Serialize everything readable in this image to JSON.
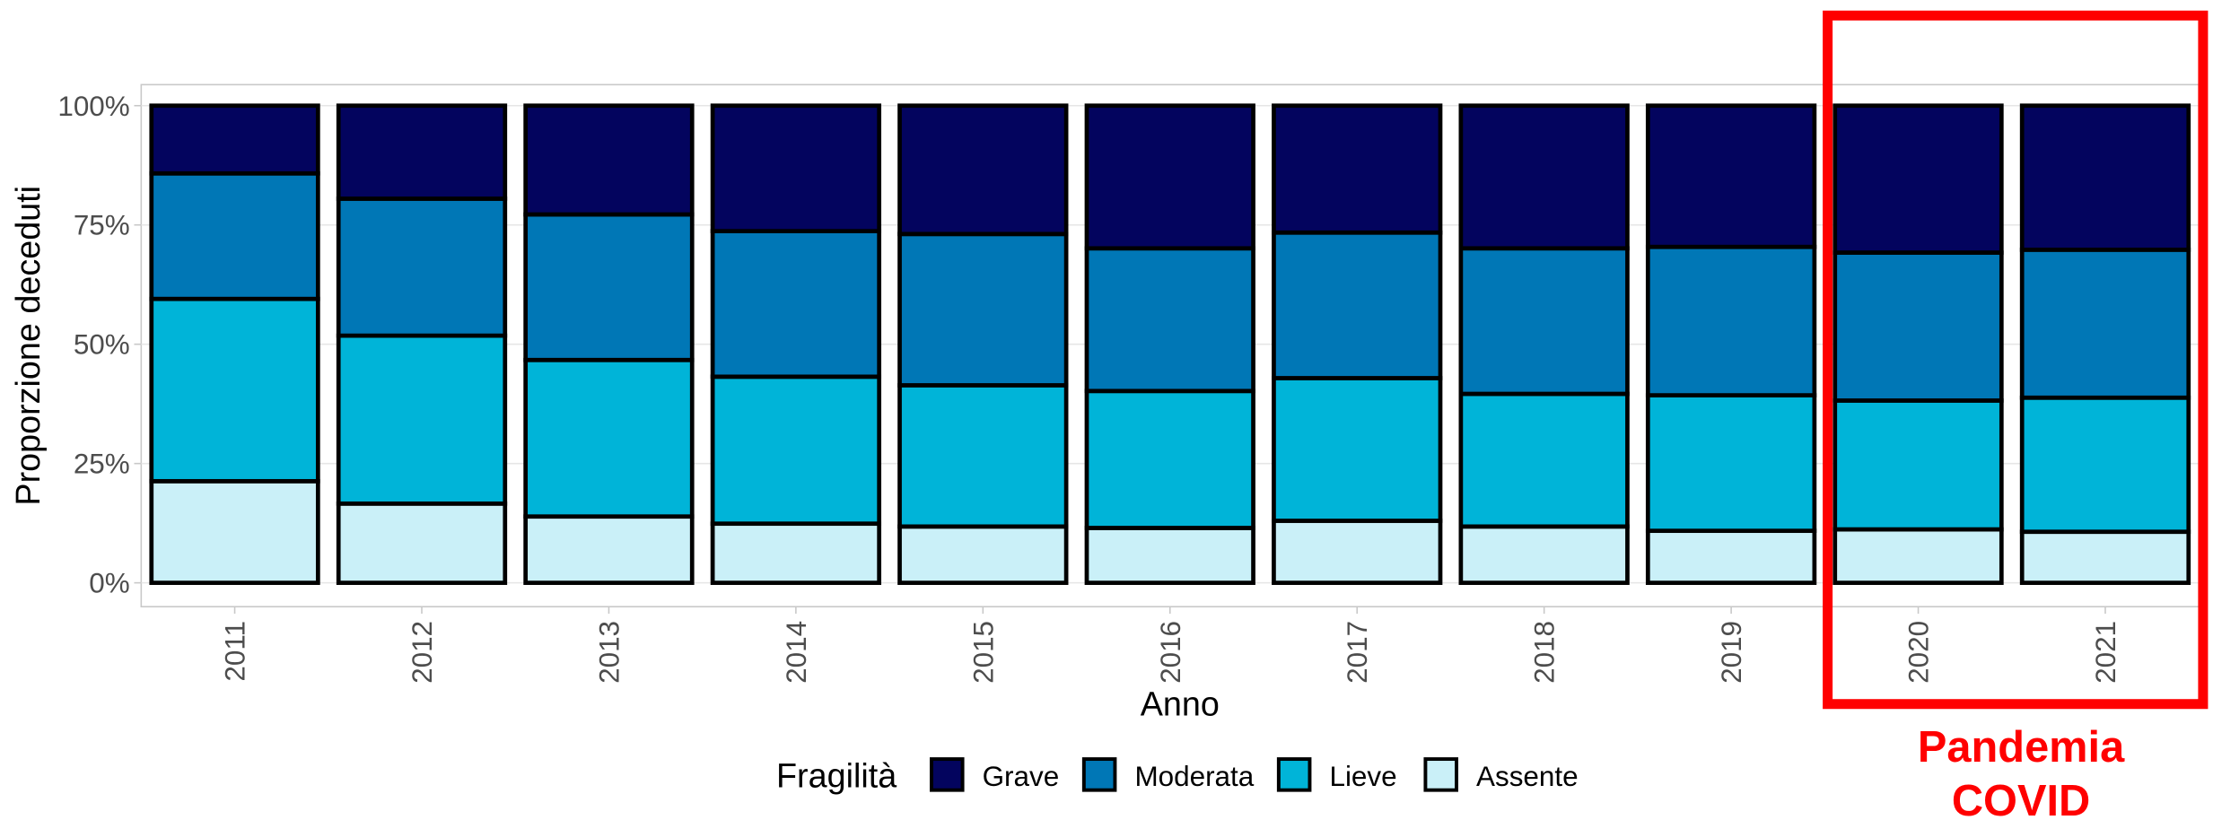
{
  "chart_data": {
    "type": "stacked_bar",
    "x_label": "Anno",
    "y_label": "Proporzione deceduti",
    "legend_title": "Fragilità",
    "legend_position": "bottom",
    "annotation": [
      "Pandemia",
      "COVID"
    ],
    "categories": [
      "2011",
      "2012",
      "2013",
      "2014",
      "2015",
      "2016",
      "2017",
      "2018",
      "2019",
      "2020",
      "2021"
    ],
    "series": [
      {
        "name": "Grave",
        "color": "#03045e",
        "values": [
          14.2,
          19.5,
          22.8,
          26.3,
          26.9,
          29.9,
          26.6,
          29.9,
          29.6,
          30.8,
          30.2
        ]
      },
      {
        "name": "Moderata",
        "color": "#0077b6",
        "values": [
          26.3,
          28.7,
          30.5,
          30.5,
          31.7,
          29.9,
          30.5,
          30.5,
          31.1,
          31.0,
          31.0
        ]
      },
      {
        "name": "Lieve",
        "color": "#00b4d8",
        "values": [
          38.2,
          35.2,
          32.8,
          30.8,
          29.6,
          28.7,
          29.9,
          27.8,
          28.4,
          27.0,
          28.1
        ]
      },
      {
        "name": "Assente",
        "color": "#caf0f8",
        "values": [
          21.3,
          16.6,
          13.9,
          12.4,
          11.8,
          11.5,
          13.0,
          11.8,
          10.9,
          11.2,
          10.7
        ]
      }
    ],
    "ylim": [
      -5,
      104.4
    ],
    "yticks": [
      {
        "value": 0,
        "label": "0%"
      },
      {
        "value": 25,
        "label": "25%"
      },
      {
        "value": 50,
        "label": "50%"
      },
      {
        "value": 75,
        "label": "75%"
      },
      {
        "value": 100,
        "label": "100%"
      }
    ],
    "grid": true
  }
}
